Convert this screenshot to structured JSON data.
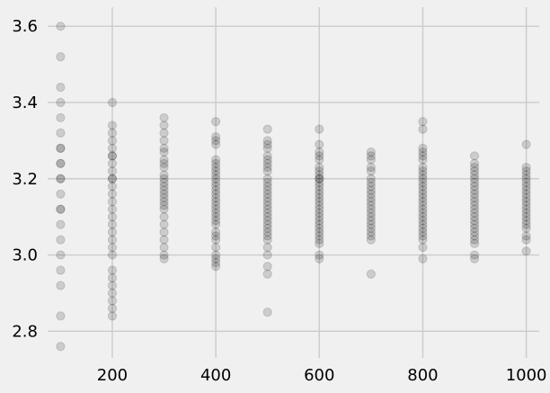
{
  "chart_data": {
    "type": "scatter",
    "title": "",
    "xlabel": "",
    "ylabel": "",
    "xlim": [
      75,
      1025
    ],
    "ylim": [
      2.73,
      3.65
    ],
    "xticks": [
      200,
      400,
      600,
      800,
      1000
    ],
    "yticks": [
      2.8,
      3.0,
      3.2,
      3.4,
      3.6
    ],
    "xtick_labels": [
      "200",
      "400",
      "600",
      "800",
      "1000"
    ],
    "ytick_labels": [
      "2.8",
      "3.0",
      "3.2",
      "3.4",
      "3.6"
    ],
    "grid": true,
    "marker_color": "#000000",
    "marker_alpha": 0.15,
    "background": "#f0f0f0",
    "grid_color": "#cbcbcb",
    "points": [
      {
        "x": 100,
        "y": [
          3.6,
          3.52,
          3.44,
          3.4,
          3.36,
          3.32,
          3.28,
          3.28,
          3.24,
          3.24,
          3.2,
          3.2,
          3.16,
          3.12,
          3.12,
          3.08,
          3.04,
          3.0,
          2.96,
          2.92,
          2.84,
          2.76
        ]
      },
      {
        "x": 200,
        "y": [
          3.4,
          3.34,
          3.32,
          3.3,
          3.28,
          3.26,
          3.26,
          3.24,
          3.22,
          3.2,
          3.2,
          3.18,
          3.16,
          3.14,
          3.12,
          3.1,
          3.08,
          3.06,
          3.04,
          3.02,
          3.0,
          2.96,
          2.94,
          2.92,
          2.9,
          2.88,
          2.86,
          2.84
        ]
      },
      {
        "x": 300,
        "y": [
          3.36,
          3.34,
          3.32,
          3.3,
          3.28,
          3.27,
          3.25,
          3.24,
          3.23,
          3.21,
          3.2,
          3.19,
          3.18,
          3.17,
          3.16,
          3.15,
          3.14,
          3.13,
          3.12,
          3.1,
          3.08,
          3.06,
          3.04,
          3.02,
          3.0,
          2.99
        ]
      },
      {
        "x": 400,
        "y": [
          3.35,
          3.31,
          3.3,
          3.29,
          3.25,
          3.24,
          3.23,
          3.22,
          3.21,
          3.2,
          3.19,
          3.18,
          3.17,
          3.16,
          3.15,
          3.14,
          3.13,
          3.12,
          3.11,
          3.1,
          3.09,
          3.08,
          3.06,
          3.05,
          3.04,
          3.02,
          3.0,
          2.99,
          2.98,
          2.97
        ]
      },
      {
        "x": 500,
        "y": [
          3.33,
          3.3,
          3.29,
          3.28,
          3.26,
          3.25,
          3.24,
          3.23,
          3.22,
          3.2,
          3.19,
          3.18,
          3.17,
          3.16,
          3.15,
          3.14,
          3.13,
          3.12,
          3.11,
          3.1,
          3.09,
          3.08,
          3.07,
          3.06,
          3.05,
          3.04,
          3.02,
          3.0,
          2.97,
          2.95,
          2.85
        ]
      },
      {
        "x": 600,
        "y": [
          3.33,
          3.29,
          3.27,
          3.26,
          3.25,
          3.23,
          3.22,
          3.21,
          3.2,
          3.2,
          3.19,
          3.18,
          3.17,
          3.16,
          3.15,
          3.14,
          3.13,
          3.12,
          3.11,
          3.1,
          3.09,
          3.08,
          3.07,
          3.06,
          3.05,
          3.04,
          3.03,
          3.0,
          2.99
        ]
      },
      {
        "x": 700,
        "y": [
          3.27,
          3.26,
          3.25,
          3.23,
          3.22,
          3.2,
          3.19,
          3.18,
          3.17,
          3.16,
          3.15,
          3.14,
          3.13,
          3.12,
          3.11,
          3.1,
          3.09,
          3.08,
          3.07,
          3.06,
          3.05,
          3.04,
          2.95
        ]
      },
      {
        "x": 800,
        "y": [
          3.35,
          3.33,
          3.28,
          3.27,
          3.26,
          3.25,
          3.23,
          3.22,
          3.21,
          3.2,
          3.19,
          3.18,
          3.17,
          3.16,
          3.15,
          3.14,
          3.13,
          3.12,
          3.11,
          3.1,
          3.09,
          3.08,
          3.07,
          3.06,
          3.05,
          3.04,
          3.02,
          2.99
        ]
      },
      {
        "x": 900,
        "y": [
          3.26,
          3.24,
          3.23,
          3.22,
          3.21,
          3.2,
          3.19,
          3.18,
          3.17,
          3.16,
          3.15,
          3.14,
          3.13,
          3.12,
          3.11,
          3.1,
          3.09,
          3.08,
          3.07,
          3.06,
          3.05,
          3.04,
          3.03,
          3.0,
          2.99
        ]
      },
      {
        "x": 1000,
        "y": [
          3.29,
          3.23,
          3.22,
          3.21,
          3.2,
          3.19,
          3.18,
          3.17,
          3.16,
          3.15,
          3.14,
          3.13,
          3.12,
          3.11,
          3.1,
          3.09,
          3.08,
          3.07,
          3.05,
          3.04,
          3.01
        ]
      }
    ]
  }
}
